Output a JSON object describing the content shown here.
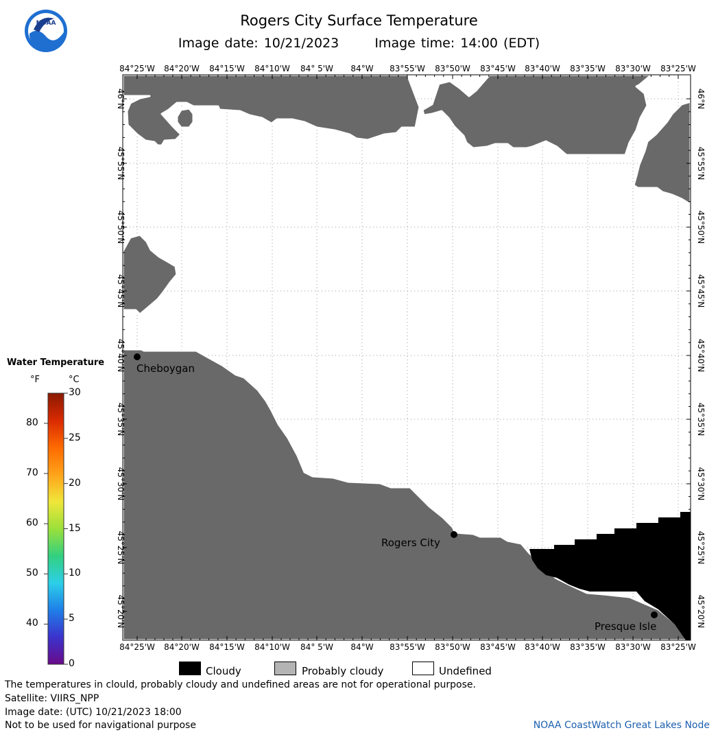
{
  "header": {
    "title": "Rogers City Surface Temperature",
    "image_date": "Image date: 10/21/2023",
    "image_time": "Image time: 14:00 (EDT)"
  },
  "logo": {
    "text": "NOAA",
    "icon": "noaa-logo-icon"
  },
  "map": {
    "lon_labels": [
      "84°25'W",
      "84°20'W",
      "84°15'W",
      "84°10'W",
      "84° 5'W",
      "84°W",
      "83°55'W",
      "83°50'W",
      "83°45'W",
      "83°40'W",
      "83°35'W",
      "83°30'W",
      "83°25'W"
    ],
    "lat_labels": [
      "46°N",
      "45°55'N",
      "45°50'N",
      "45°45'N",
      "45°40'N",
      "45°35'N",
      "45°30'N",
      "45°25'N",
      "45°20'N"
    ],
    "land_color": "#696969",
    "cloud_color": "#000000",
    "places": [
      {
        "name": "Cheboygan"
      },
      {
        "name": "Rogers City"
      },
      {
        "name": "Presque Isle"
      }
    ]
  },
  "legend": {
    "title": "Water Temperature",
    "unit_f": "°F",
    "unit_c": "°C",
    "f_ticks": [
      "80",
      "70",
      "60",
      "50",
      "40"
    ],
    "c_ticks": [
      "30",
      "25",
      "20",
      "15",
      "10",
      "5",
      "0"
    ],
    "colors": [
      "#6a0a8a",
      "#3b33cc",
      "#1f7fe8",
      "#2ccfe8",
      "#33d080",
      "#9be03a",
      "#f0e63a",
      "#ffa31a",
      "#ff6a00",
      "#d92a00",
      "#8a1a00"
    ]
  },
  "key": {
    "cloudy": "Cloudy",
    "probably_cloudy": "Probably cloudy",
    "undefined": "Undefined"
  },
  "footer": {
    "line1": "The temperatures in clould, probably cloudy and undefined areas are not for operational purpose.",
    "line2": "Satellite: VIIRS_NPP",
    "line3": "Image date: (UTC) 10/21/2023  18:00",
    "line4": "Not to be used for navigational purpose",
    "credit": "NOAA CoastWatch Great Lakes Node"
  }
}
